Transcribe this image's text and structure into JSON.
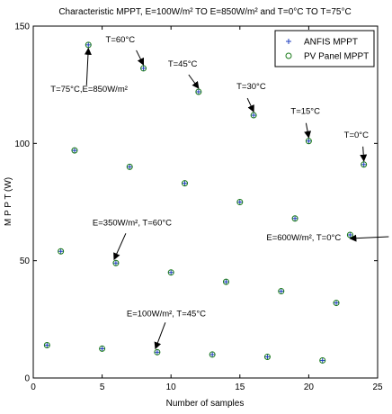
{
  "chart_data": {
    "type": "scatter",
    "title": "Characteristic MPPT, E=100W/m² TO E=850W/m² and  T=0°C TO T=75°C",
    "xlabel": "Number of samples",
    "ylabel": "M P P T  (W)",
    "xlim": [
      0,
      25
    ],
    "ylim": [
      0,
      150
    ],
    "xticks": [
      0,
      5,
      10,
      15,
      20,
      25
    ],
    "yticks": [
      0,
      50,
      100,
      150
    ],
    "grid": false,
    "legend_position": "top-right",
    "series": [
      {
        "name": "ANFIS MPPT",
        "marker": "plus",
        "color": "#1f3fbf",
        "x": [
          1,
          2,
          3,
          4,
          5,
          6,
          7,
          8,
          9,
          10,
          11,
          12,
          13,
          14,
          15,
          16,
          17,
          18,
          19,
          20,
          21,
          22,
          23,
          24
        ],
        "y": [
          14,
          54,
          97,
          142,
          12.5,
          49,
          90,
          132,
          11,
          45,
          83,
          122,
          10,
          41,
          75,
          112,
          9,
          37,
          68,
          101,
          7.5,
          32,
          61,
          91
        ]
      },
      {
        "name": "PV Panel MPPT",
        "marker": "circle",
        "color": "#1a7a1a",
        "x": [
          1,
          2,
          3,
          4,
          5,
          6,
          7,
          8,
          9,
          10,
          11,
          12,
          13,
          14,
          15,
          16,
          17,
          18,
          19,
          20,
          21,
          22,
          23,
          24
        ],
        "y": [
          14,
          54,
          97,
          142,
          12.5,
          49,
          90,
          132,
          11,
          45,
          83,
          122,
          10,
          41,
          75,
          112,
          9,
          37,
          68,
          101,
          7.5,
          32,
          61,
          91
        ]
      }
    ],
    "annotations": [
      {
        "text": "T=75°C,E=850W/m²",
        "x": 4,
        "y": 142
      },
      {
        "text": "T=60°C",
        "x": 8,
        "y": 132
      },
      {
        "text": "T=45°C",
        "x": 12,
        "y": 122
      },
      {
        "text": "T=30°C",
        "x": 16,
        "y": 112
      },
      {
        "text": "T=15°C",
        "x": 20,
        "y": 101
      },
      {
        "text": "T=0°C",
        "x": 24,
        "y": 91
      },
      {
        "text": "E=350W/m², T=60°C",
        "x": 6,
        "y": 49
      },
      {
        "text": "E=600W/m², T=0°C",
        "x": 23,
        "y": 61
      },
      {
        "text": "E=100W/m², T=45°C",
        "x": 9,
        "y": 11
      }
    ]
  }
}
